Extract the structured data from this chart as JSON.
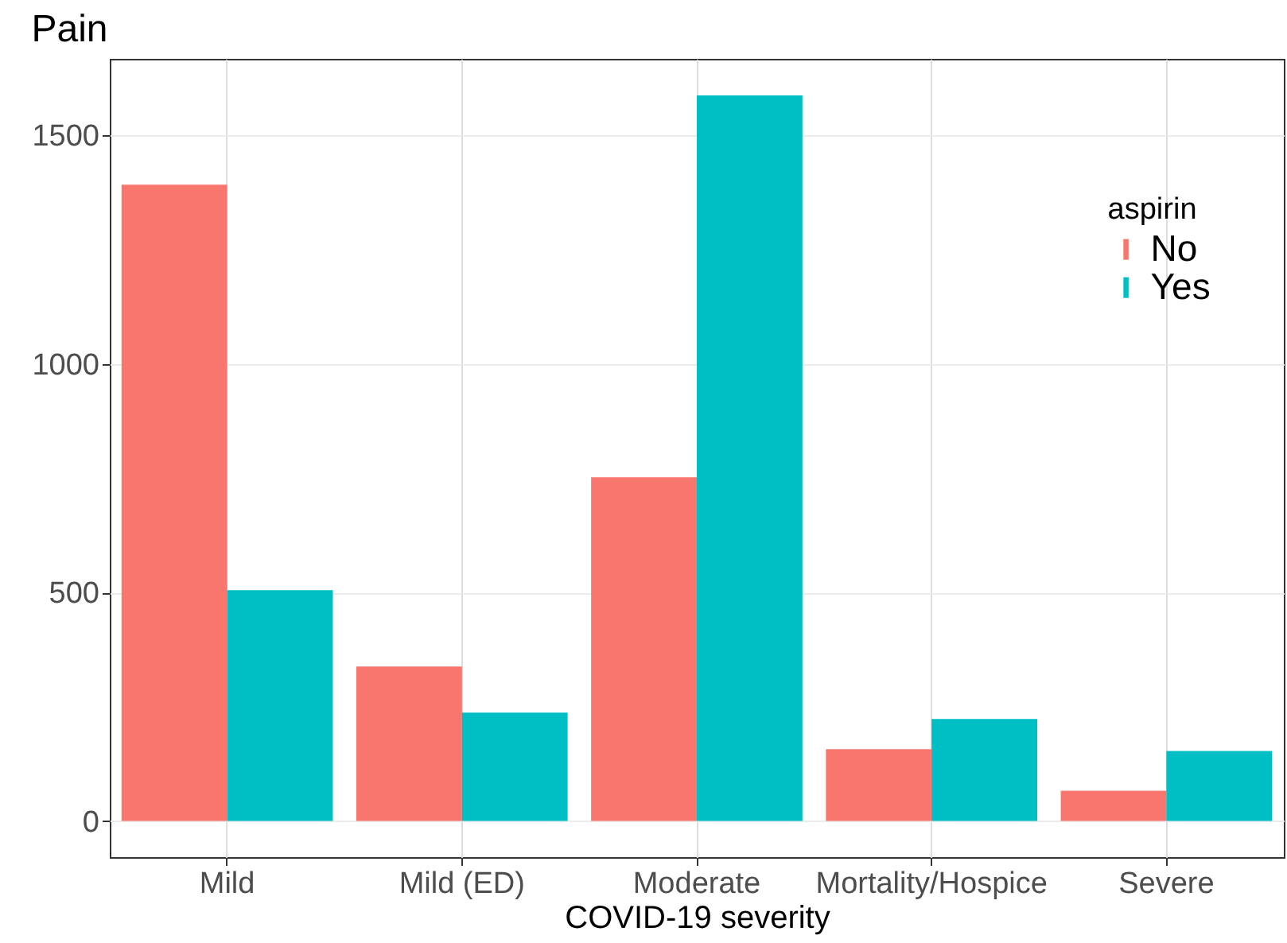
{
  "chart_data": {
    "type": "bar",
    "title": "Pain",
    "xlabel": "COVID-19 severity",
    "legend_title": "aspirin",
    "categories": [
      "Mild",
      "Mild (ED)",
      "Moderate",
      "Mortality/Hospice",
      "Severe"
    ],
    "series": [
      {
        "name": "No",
        "color": "#f8766d",
        "values": [
          1392,
          338,
          752,
          157,
          66
        ]
      },
      {
        "name": "Yes",
        "color": "#00bfc4",
        "values": [
          505,
          237,
          1587,
          223,
          153
        ]
      }
    ],
    "ylim": [
      -79,
      1667
    ],
    "yticks": [
      0,
      500,
      1000,
      1500
    ],
    "grid": true,
    "legend": "top right"
  }
}
